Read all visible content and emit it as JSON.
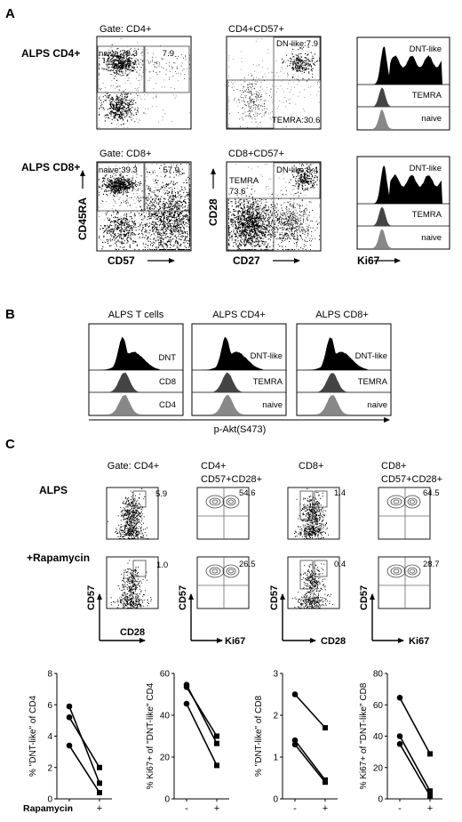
{
  "panelA": {
    "letter": "A",
    "row_cd4": {
      "row_label": "ALPS CD4+",
      "plot1": {
        "title": "Gate: CD4+",
        "gate_left": "naive:78.3",
        "gate_right": "7.9"
      },
      "plot2": {
        "title": "CD4+CD57+",
        "gate_dn": "DN-like:7.9",
        "gate_temra": "TEMRA:30.6"
      },
      "hist": {
        "labels": [
          "DNT-like",
          "TEMRA",
          "naive"
        ]
      }
    },
    "row_cd8": {
      "row_label": "ALPS CD8+",
      "plot1": {
        "title": "Gate: CD8+",
        "gate_left": "naive:39.3",
        "gate_right": "57.9"
      },
      "plot2": {
        "title": "CD8+CD57+",
        "gate_dn": "DN-like:8.4",
        "gate_temra_1": "TEMRA",
        "gate_temra_2": "73.6"
      },
      "hist": {
        "labels": [
          "DNT-like",
          "TEMRA",
          "naive"
        ]
      }
    },
    "axes": {
      "y1": "CD45RA",
      "x1": "CD57",
      "y2": "CD28",
      "x2": "CD27",
      "x3": "Ki67"
    }
  },
  "panelB": {
    "letter": "B",
    "hists": [
      {
        "title": "ALPS T cells",
        "labels": [
          "DNT",
          "CD8",
          "CD4"
        ]
      },
      {
        "title": "ALPS CD4+",
        "labels": [
          "DNT-like",
          "TEMRA",
          "naive"
        ]
      },
      {
        "title": "ALPS CD8+",
        "labels": [
          "DNT-like",
          "TEMRA",
          "naive"
        ]
      }
    ],
    "xaxis": "p-Akt(S473)"
  },
  "panelC": {
    "letter": "C",
    "col_titles": [
      [
        "Gate: CD4+"
      ],
      [
        "CD4+",
        "CD57+CD28+"
      ],
      [
        "CD8+"
      ],
      [
        "CD8+",
        "CD57+CD28+"
      ]
    ],
    "row_labels": [
      "ALPS",
      "+Rapamycin"
    ],
    "values_alps": [
      "5.9",
      "54.6",
      "1.4",
      "64.5"
    ],
    "values_rapa": [
      "1.0",
      "26.5",
      "0.4",
      "28.7"
    ],
    "axis_y": [
      "CD57",
      "CD57",
      "CD57",
      "CD57"
    ],
    "axis_x": [
      "CD28",
      "Ki67",
      "CD28",
      "Ki67"
    ],
    "xlabel_row": "Rapamycin",
    "tick_minus": "-",
    "tick_plus": "+"
  },
  "chart_data": [
    {
      "type": "line",
      "ylabel": "% \"DNT-like\" of CD4",
      "yticks": [
        "0",
        "2",
        "4",
        "6",
        "8"
      ],
      "ylim": [
        0,
        8
      ],
      "x": [
        "-",
        "+"
      ],
      "series": [
        {
          "values": [
            5.9,
            1.0
          ]
        },
        {
          "values": [
            5.2,
            2.0
          ]
        },
        {
          "values": [
            3.4,
            0.4
          ]
        }
      ]
    },
    {
      "type": "line",
      "ylabel": "% Ki67+ of \"DNT-like\" CD4",
      "yticks": [
        "0",
        "20",
        "40",
        "60"
      ],
      "ylim": [
        0,
        60
      ],
      "x": [
        "-",
        "+"
      ],
      "series": [
        {
          "values": [
            54.6,
            26.5
          ]
        },
        {
          "values": [
            53.5,
            30.0
          ]
        },
        {
          "values": [
            45.5,
            16.0
          ]
        }
      ]
    },
    {
      "type": "line",
      "ylabel": "% \"DNT-like\" of CD8",
      "yticks": [
        "0",
        "1",
        "2",
        "3"
      ],
      "ylim": [
        0,
        3
      ],
      "x": [
        "-",
        "+"
      ],
      "series": [
        {
          "values": [
            2.5,
            1.7
          ]
        },
        {
          "values": [
            1.4,
            0.45
          ]
        },
        {
          "values": [
            1.3,
            0.4
          ]
        }
      ]
    },
    {
      "type": "line",
      "ylabel": "% Ki67+ of \"DNT-like\" CD8",
      "yticks": [
        "0",
        "20",
        "40",
        "60",
        "80"
      ],
      "ylim": [
        0,
        80
      ],
      "x": [
        "-",
        "+"
      ],
      "series": [
        {
          "values": [
            64.5,
            28.7
          ]
        },
        {
          "values": [
            40.0,
            5.0
          ]
        },
        {
          "values": [
            35.0,
            2.0
          ]
        }
      ]
    }
  ]
}
